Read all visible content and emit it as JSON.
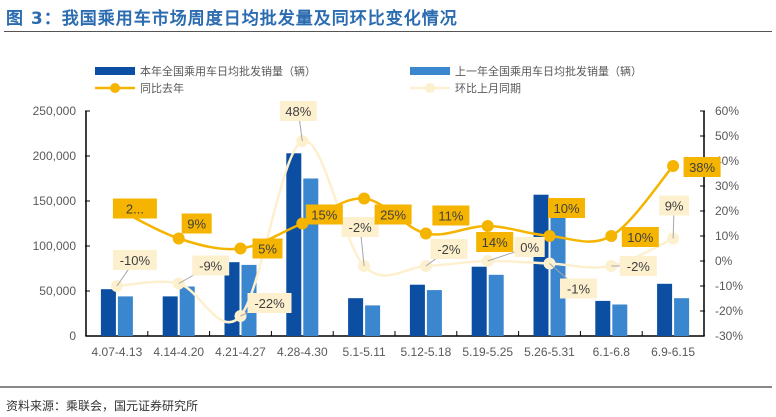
{
  "title": "图 3：我国乘用车市场周度日均批发量及同环比变化情况",
  "source": "资料来源：乘联会，国元证券研究所",
  "colors": {
    "current": "#0b4ea2",
    "last": "#3a86cf",
    "yoy": "#f4b400",
    "mom": "#fdf0cf",
    "text": "#595959"
  },
  "chart_data": {
    "type": "bar",
    "categories": [
      "4.07-4.13",
      "4.14-4.20",
      "4.21-4.27",
      "4.28-4.30",
      "5.1-5.11",
      "5.12-5.18",
      "5.19-5.25",
      "5.26-5.31",
      "6.1-6.8",
      "6.9-6.15"
    ],
    "series": [
      {
        "name": "本年全国乘用车日均批发销量（辆）",
        "type": "bar",
        "axis": "left",
        "values": [
          52000,
          44000,
          82000,
          203000,
          42000,
          57000,
          77000,
          157000,
          39000,
          58000
        ]
      },
      {
        "name": "上一年全国乘用车日均批发销量（辆）",
        "type": "bar",
        "axis": "left",
        "values": [
          44000,
          55000,
          79000,
          175000,
          34000,
          51000,
          68000,
          136000,
          35000,
          42000
        ]
      },
      {
        "name": "同比去年",
        "type": "line",
        "axis": "right",
        "values": [
          21,
          9,
          5,
          15,
          25,
          11,
          14,
          10,
          10,
          38
        ],
        "labels": [
          "2...",
          "9%",
          "5%",
          "15%",
          "25%",
          "11%",
          "14%",
          "10%",
          "10%",
          "38%"
        ]
      },
      {
        "name": "环比上月同期",
        "type": "line",
        "axis": "right",
        "values": [
          -10,
          -9,
          -22,
          48,
          -2,
          -2,
          0,
          -1,
          -2,
          9
        ],
        "labels": [
          "-10%",
          "-9%",
          "-22%",
          "48%",
          "-2%",
          "-2%",
          "0%",
          "-1%",
          "-2%",
          "9%"
        ]
      }
    ],
    "left_axis": {
      "range": [
        0,
        250000
      ],
      "ticks": [
        "0",
        "50,000",
        "100,000",
        "150,000",
        "200,000",
        "250,000"
      ]
    },
    "right_axis": {
      "range": [
        -30,
        60
      ],
      "ticks": [
        "-30%",
        "-20%",
        "-10%",
        "0%",
        "10%",
        "20%",
        "30%",
        "40%",
        "50%",
        "60%"
      ]
    },
    "legend_position": "top"
  }
}
